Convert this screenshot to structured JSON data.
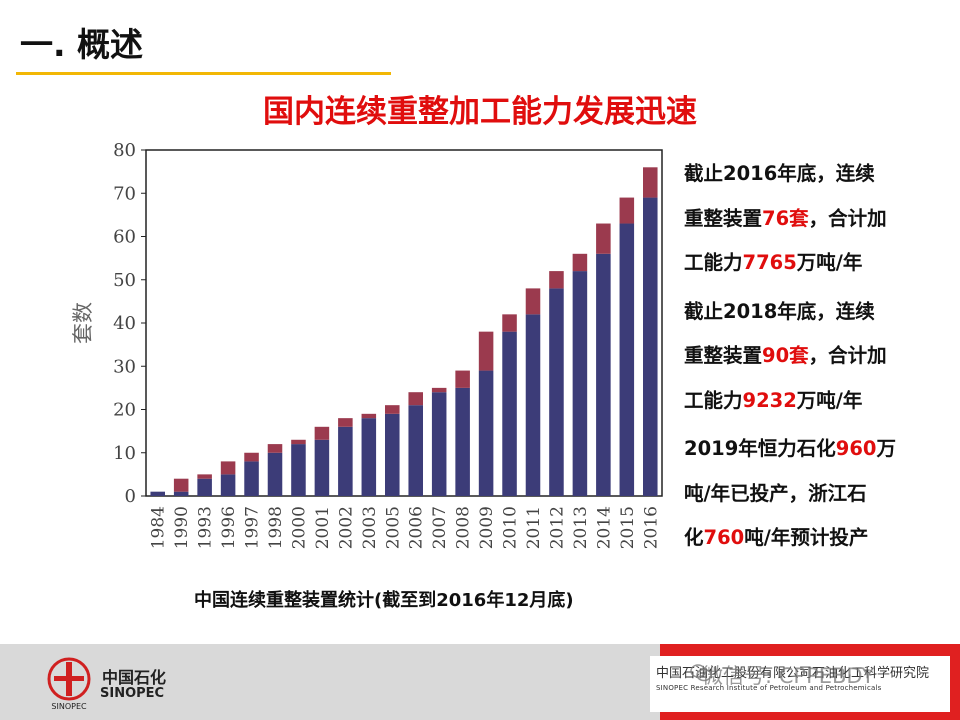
{
  "header": {
    "title": "一. 概述"
  },
  "slide": {
    "title": "国内连续重整加工能力发展迅速"
  },
  "chart_caption": "中国连续重整装置统计(截至到2016年12月底)",
  "chart_data": {
    "type": "bar",
    "stacked": true,
    "ylabel": "套数",
    "xlabel": "",
    "ylim": [
      0,
      80
    ],
    "yticks": [
      0,
      10,
      20,
      30,
      40,
      50,
      60,
      70,
      80
    ],
    "categories": [
      "1984",
      "1990",
      "1993",
      "1996",
      "1997",
      "1998",
      "2000",
      "2001",
      "2002",
      "2003",
      "2005",
      "2006",
      "2007",
      "2008",
      "2009",
      "2010",
      "2011",
      "2012",
      "2013",
      "2014",
      "2015",
      "2016"
    ],
    "series": [
      {
        "color": "#3c3c78",
        "values": [
          1,
          1,
          4,
          5,
          8,
          10,
          12,
          13,
          16,
          18,
          19,
          21,
          24,
          25,
          29,
          38,
          42,
          48,
          52,
          56,
          63,
          69
        ]
      },
      {
        "color": "#9b3a4e",
        "values": [
          0,
          3,
          1,
          3,
          2,
          2,
          1,
          3,
          2,
          1,
          2,
          3,
          1,
          4,
          9,
          4,
          6,
          4,
          4,
          7,
          6,
          7
        ]
      }
    ],
    "grid": false,
    "legend": "none"
  },
  "notes": {
    "p1": {
      "l1": "截止2016年底，连续",
      "l2a": "重整装置",
      "l2b": "76套",
      "l2c": "，合计加",
      "l3a": "工能力",
      "l3b": "7765",
      "l3c": "万吨/年"
    },
    "p2": {
      "l1": "截止2018年底，连续",
      "l2a": "重整装置",
      "l2b": "90套",
      "l2c": "，合计加",
      "l3a": "工能力",
      "l3b": "9232",
      "l3c": "万吨/年"
    },
    "p3": {
      "l1a": "2019年恒力石化",
      "l1b": "960",
      "l1c": "万",
      "l2": "吨/年已投产，浙江石",
      "l3a": "化",
      "l3b": "760",
      "l3c": "吨/年预计投产"
    }
  },
  "footer": {
    "logo_cn": "中国石化",
    "logo_en": "SINOPEC",
    "logo_mark": "SINOPEC",
    "institute_cn": "中国石油化工股份有限公司石油化工科学研究院",
    "institute_en": "SINOPEC Research Institute of Petroleum and Petrochemicals",
    "watermark": "微信号: CPPEBDY"
  }
}
